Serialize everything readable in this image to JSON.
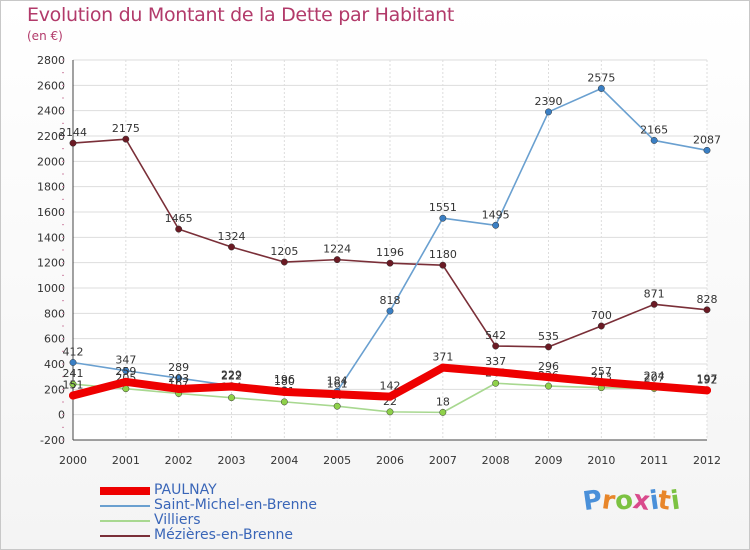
{
  "header": {
    "title": "Evolution du Montant de la Dette par Habitant",
    "subtitle": "(en €)"
  },
  "brand": {
    "text": "Proxiti",
    "colors": [
      "#4a90d9",
      "#e8862a",
      "#7cc242",
      "#d94a8c",
      "#4a90d9",
      "#e8862a",
      "#7cc242"
    ]
  },
  "chart_data": {
    "type": "line",
    "title": "Evolution du Montant de la Dette par Habitant",
    "subtitle": "(en €)",
    "x": [
      "2000",
      "2001",
      "2002",
      "2003",
      "2004",
      "2005",
      "2006",
      "2007",
      "2008",
      "2009",
      "2010",
      "2011",
      "2012"
    ],
    "ylim": [
      -200,
      2800
    ],
    "yticks": [
      -200,
      0,
      200,
      400,
      600,
      800,
      1000,
      1200,
      1400,
      1600,
      1800,
      2000,
      2200,
      2400,
      2600,
      2800
    ],
    "grid": true,
    "legend": "bottom-left",
    "series": [
      {
        "name": "Mézières-en-Brenne",
        "color": "#7a2f38",
        "marker": "#6b1a24",
        "values": [
          2144,
          2175,
          1465,
          1324,
          1205,
          1224,
          1196,
          1180,
          542,
          535,
          700,
          871,
          828
        ]
      },
      {
        "name": "Saint-Michel-en-Brenne",
        "color": "#6aa0d0",
        "marker": "#3a7fc4",
        "values": [
          412,
          347,
          289,
          229,
          196,
          184,
          818,
          1551,
          1495,
          2390,
          2575,
          2165,
          2087
        ]
      },
      {
        "name": "Villiers",
        "color": "#a8d890",
        "marker": "#8fd14a",
        "values": [
          241,
          205,
          167,
          134,
          101,
          67,
          22,
          18,
          248,
          226,
          213,
          207,
          197
        ]
      },
      {
        "name": "PAULNAY",
        "color": "#ee0000",
        "marker": "#ee0000",
        "values": [
          151,
          259,
          203,
          222,
          180,
          161,
          142,
          371,
          337,
          296,
          257,
          224,
          192
        ]
      }
    ],
    "legend_order": [
      "PAULNAY",
      "Saint-Michel-en-Brenne",
      "Villiers",
      "Mézières-en-Brenne"
    ]
  }
}
